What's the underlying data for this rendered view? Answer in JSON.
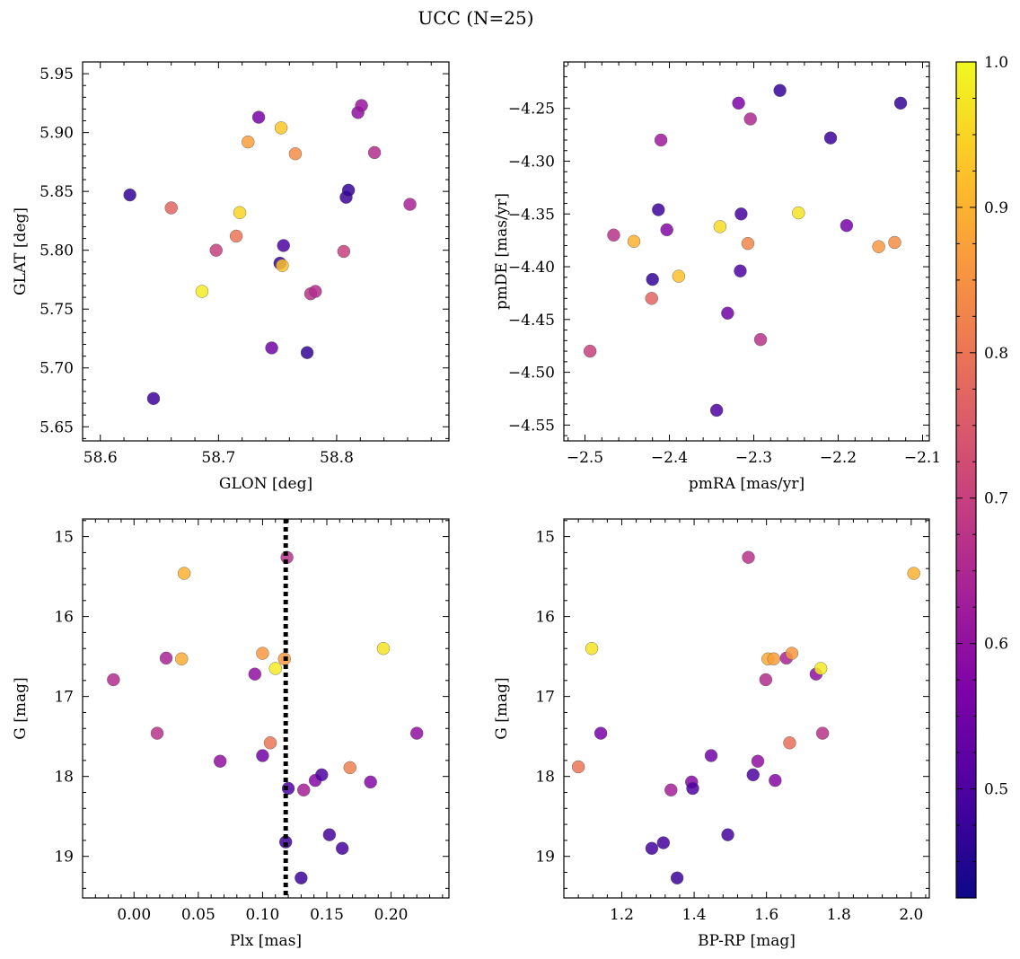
{
  "title": "UCC (N=25)",
  "colorbar": {
    "range": [
      0.425,
      1.0
    ],
    "ticks": [
      0.5,
      0.6,
      0.7,
      0.8,
      0.9,
      1.0
    ],
    "tick_labels": [
      "0.5",
      "0.6",
      "0.7",
      "0.8",
      "0.9",
      "1.0"
    ],
    "colormap": "plasma"
  },
  "chart_data": [
    {
      "type": "scatter",
      "xlabel": "GLON [deg]",
      "ylabel": "GLAT [deg]",
      "xlim": [
        58.585,
        58.895
      ],
      "ylim": [
        5.638,
        5.96
      ],
      "x_ticks": [
        58.6,
        58.7,
        58.8
      ],
      "x_tick_labels": [
        "58.6",
        "58.7",
        "58.8"
      ],
      "y_ticks": [
        5.65,
        5.7,
        5.75,
        5.8,
        5.85,
        5.9,
        5.95
      ],
      "y_tick_labels": [
        "5.65",
        "5.70",
        "5.75",
        "5.80",
        "5.85",
        "5.90",
        "5.95"
      ],
      "y_inverted": false,
      "points": [
        {
          "x": 58.625,
          "y": 5.847,
          "c": 0.47
        },
        {
          "x": 58.645,
          "y": 5.674,
          "c": 0.48
        },
        {
          "x": 58.66,
          "y": 5.836,
          "c": 0.77
        },
        {
          "x": 58.686,
          "y": 5.765,
          "c": 0.98
        },
        {
          "x": 58.698,
          "y": 5.8,
          "c": 0.7
        },
        {
          "x": 58.715,
          "y": 5.812,
          "c": 0.8
        },
        {
          "x": 58.718,
          "y": 5.832,
          "c": 0.95
        },
        {
          "x": 58.725,
          "y": 5.892,
          "c": 0.87
        },
        {
          "x": 58.734,
          "y": 5.913,
          "c": 0.56
        },
        {
          "x": 58.745,
          "y": 5.717,
          "c": 0.55
        },
        {
          "x": 58.752,
          "y": 5.789,
          "c": 0.47
        },
        {
          "x": 58.754,
          "y": 5.787,
          "c": 0.92
        },
        {
          "x": 58.753,
          "y": 5.904,
          "c": 0.93
        },
        {
          "x": 58.755,
          "y": 5.804,
          "c": 0.5
        },
        {
          "x": 58.765,
          "y": 5.882,
          "c": 0.84
        },
        {
          "x": 58.775,
          "y": 5.713,
          "c": 0.47
        },
        {
          "x": 58.778,
          "y": 5.763,
          "c": 0.67
        },
        {
          "x": 58.782,
          "y": 5.765,
          "c": 0.66
        },
        {
          "x": 58.806,
          "y": 5.799,
          "c": 0.7
        },
        {
          "x": 58.808,
          "y": 5.845,
          "c": 0.48
        },
        {
          "x": 58.81,
          "y": 5.851,
          "c": 0.47
        },
        {
          "x": 58.818,
          "y": 5.917,
          "c": 0.6
        },
        {
          "x": 58.821,
          "y": 5.923,
          "c": 0.61
        },
        {
          "x": 58.832,
          "y": 5.883,
          "c": 0.66
        },
        {
          "x": 58.862,
          "y": 5.839,
          "c": 0.64
        }
      ]
    },
    {
      "type": "scatter",
      "xlabel": "pmRA [mas/yr]",
      "ylabel": "pmDE [mas/yr]",
      "xlim": [
        -2.525,
        -2.092
      ],
      "ylim": [
        -4.565,
        -4.206
      ],
      "x_ticks": [
        -2.5,
        -2.4,
        -2.3,
        -2.2,
        -2.1
      ],
      "x_tick_labels": [
        "−2.5",
        "−2.4",
        "−2.3",
        "−2.2",
        "−2.1"
      ],
      "y_ticks": [
        -4.55,
        -4.5,
        -4.45,
        -4.4,
        -4.35,
        -4.3,
        -4.25
      ],
      "y_tick_labels": [
        "−4.55",
        "−4.50",
        "−4.45",
        "−4.40",
        "−4.35",
        "−4.30",
        "−4.25"
      ],
      "y_inverted": false,
      "points": [
        {
          "x": -2.494,
          "y": -4.48,
          "c": 0.7
        },
        {
          "x": -2.466,
          "y": -4.37,
          "c": 0.67
        },
        {
          "x": -2.442,
          "y": -4.376,
          "c": 0.9
        },
        {
          "x": -2.421,
          "y": -4.43,
          "c": 0.77
        },
        {
          "x": -2.42,
          "y": -4.412,
          "c": 0.47
        },
        {
          "x": -2.413,
          "y": -4.346,
          "c": 0.48
        },
        {
          "x": -2.41,
          "y": -4.28,
          "c": 0.62
        },
        {
          "x": -2.403,
          "y": -4.365,
          "c": 0.58
        },
        {
          "x": -2.389,
          "y": -4.409,
          "c": 0.92
        },
        {
          "x": -2.344,
          "y": -4.536,
          "c": 0.5
        },
        {
          "x": -2.34,
          "y": -4.362,
          "c": 0.96
        },
        {
          "x": -2.331,
          "y": -4.444,
          "c": 0.55
        },
        {
          "x": -2.318,
          "y": -4.245,
          "c": 0.57
        },
        {
          "x": -2.316,
          "y": -4.404,
          "c": 0.5
        },
        {
          "x": -2.315,
          "y": -4.35,
          "c": 0.49
        },
        {
          "x": -2.307,
          "y": -4.378,
          "c": 0.83
        },
        {
          "x": -2.304,
          "y": -4.26,
          "c": 0.65
        },
        {
          "x": -2.292,
          "y": -4.469,
          "c": 0.67
        },
        {
          "x": -2.269,
          "y": -4.233,
          "c": 0.47
        },
        {
          "x": -2.247,
          "y": -4.349,
          "c": 0.97
        },
        {
          "x": -2.209,
          "y": -4.278,
          "c": 0.48
        },
        {
          "x": -2.19,
          "y": -4.361,
          "c": 0.56
        },
        {
          "x": -2.152,
          "y": -4.381,
          "c": 0.86
        },
        {
          "x": -2.133,
          "y": -4.377,
          "c": 0.84
        },
        {
          "x": -2.126,
          "y": -4.245,
          "c": 0.47
        }
      ]
    },
    {
      "type": "scatter",
      "xlabel": "Plx [mas]",
      "ylabel": "G [mag]",
      "xlim": [
        -0.04,
        0.245
      ],
      "ylim": [
        19.52,
        14.78
      ],
      "x_ticks": [
        0.0,
        0.05,
        0.1,
        0.15,
        0.2
      ],
      "x_tick_labels": [
        "0.00",
        "0.05",
        "0.10",
        "0.15",
        "0.20"
      ],
      "y_ticks": [
        15,
        16,
        17,
        18,
        19
      ],
      "y_tick_labels": [
        "15",
        "16",
        "17",
        "18",
        "19"
      ],
      "y_inverted": true,
      "reference_line": {
        "x": 0.118,
        "style": "dotted"
      },
      "points": [
        {
          "x": -0.016,
          "y": 16.79,
          "c": 0.66
        },
        {
          "x": 0.018,
          "y": 17.46,
          "c": 0.67
        },
        {
          "x": 0.025,
          "y": 16.52,
          "c": 0.64
        },
        {
          "x": 0.037,
          "y": 16.53,
          "c": 0.89
        },
        {
          "x": 0.039,
          "y": 15.46,
          "c": 0.9
        },
        {
          "x": 0.067,
          "y": 17.81,
          "c": 0.6
        },
        {
          "x": 0.094,
          "y": 16.72,
          "c": 0.6
        },
        {
          "x": 0.1,
          "y": 17.74,
          "c": 0.55
        },
        {
          "x": 0.1,
          "y": 16.46,
          "c": 0.86
        },
        {
          "x": 0.106,
          "y": 17.58,
          "c": 0.8
        },
        {
          "x": 0.11,
          "y": 16.65,
          "c": 0.98
        },
        {
          "x": 0.117,
          "y": 16.53,
          "c": 0.86
        },
        {
          "x": 0.118,
          "y": 18.82,
          "c": 0.48
        },
        {
          "x": 0.119,
          "y": 15.26,
          "c": 0.67
        },
        {
          "x": 0.12,
          "y": 18.15,
          "c": 0.5
        },
        {
          "x": 0.13,
          "y": 19.27,
          "c": 0.48
        },
        {
          "x": 0.132,
          "y": 18.17,
          "c": 0.63
        },
        {
          "x": 0.141,
          "y": 18.05,
          "c": 0.58
        },
        {
          "x": 0.146,
          "y": 17.98,
          "c": 0.5
        },
        {
          "x": 0.152,
          "y": 18.73,
          "c": 0.49
        },
        {
          "x": 0.162,
          "y": 18.9,
          "c": 0.49
        },
        {
          "x": 0.168,
          "y": 17.89,
          "c": 0.82
        },
        {
          "x": 0.184,
          "y": 18.07,
          "c": 0.58
        },
        {
          "x": 0.194,
          "y": 16.4,
          "c": 0.97
        },
        {
          "x": 0.22,
          "y": 17.46,
          "c": 0.6
        }
      ]
    },
    {
      "type": "scatter",
      "xlabel": "BP-RP [mag]",
      "ylabel": "G [mag]",
      "xlim": [
        1.04,
        2.05
      ],
      "ylim": [
        19.52,
        14.78
      ],
      "x_ticks": [
        1.2,
        1.4,
        1.6,
        1.8,
        2.0
      ],
      "x_tick_labels": [
        "1.2",
        "1.4",
        "1.6",
        "1.8",
        "2.0"
      ],
      "y_ticks": [
        15,
        16,
        17,
        18,
        19
      ],
      "y_tick_labels": [
        "15",
        "16",
        "17",
        "18",
        "19"
      ],
      "y_inverted": true,
      "points": [
        {
          "x": 1.08,
          "y": 17.88,
          "c": 0.8
        },
        {
          "x": 1.117,
          "y": 16.4,
          "c": 0.97
        },
        {
          "x": 1.142,
          "y": 17.46,
          "c": 0.56
        },
        {
          "x": 1.283,
          "y": 18.9,
          "c": 0.49
        },
        {
          "x": 1.315,
          "y": 18.83,
          "c": 0.49
        },
        {
          "x": 1.336,
          "y": 18.17,
          "c": 0.63
        },
        {
          "x": 1.353,
          "y": 19.27,
          "c": 0.48
        },
        {
          "x": 1.393,
          "y": 18.07,
          "c": 0.58
        },
        {
          "x": 1.396,
          "y": 18.15,
          "c": 0.5
        },
        {
          "x": 1.447,
          "y": 17.74,
          "c": 0.55
        },
        {
          "x": 1.493,
          "y": 18.73,
          "c": 0.49
        },
        {
          "x": 1.55,
          "y": 15.26,
          "c": 0.67
        },
        {
          "x": 1.563,
          "y": 17.98,
          "c": 0.5
        },
        {
          "x": 1.576,
          "y": 17.81,
          "c": 0.6
        },
        {
          "x": 1.598,
          "y": 16.79,
          "c": 0.66
        },
        {
          "x": 1.604,
          "y": 16.53,
          "c": 0.89
        },
        {
          "x": 1.62,
          "y": 16.53,
          "c": 0.87
        },
        {
          "x": 1.624,
          "y": 18.05,
          "c": 0.58
        },
        {
          "x": 1.655,
          "y": 16.52,
          "c": 0.64
        },
        {
          "x": 1.664,
          "y": 17.58,
          "c": 0.79
        },
        {
          "x": 1.67,
          "y": 16.46,
          "c": 0.86
        },
        {
          "x": 1.737,
          "y": 16.72,
          "c": 0.6
        },
        {
          "x": 1.75,
          "y": 16.65,
          "c": 0.98
        },
        {
          "x": 1.755,
          "y": 17.46,
          "c": 0.67
        },
        {
          "x": 2.007,
          "y": 15.46,
          "c": 0.9
        }
      ]
    }
  ]
}
